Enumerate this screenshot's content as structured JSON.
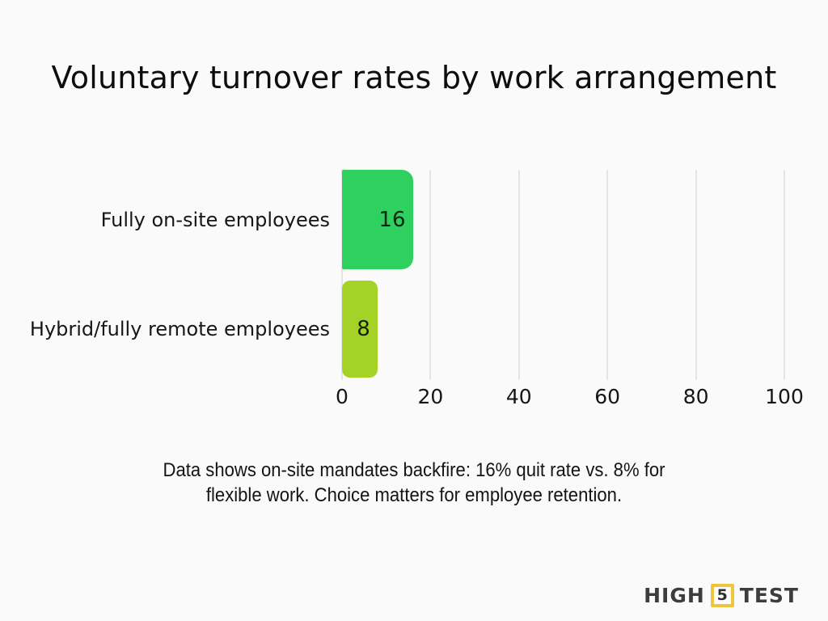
{
  "background_color": "#fafafa",
  "title": "Voluntary turnover rates by work arrangement",
  "chart_data": {
    "type": "bar",
    "orientation": "horizontal",
    "title": "Voluntary turnover rates by work arrangement",
    "categories": [
      "Fully on-site employees",
      "Hybrid/fully remote employees"
    ],
    "values": [
      16,
      8
    ],
    "value_labels": [
      "16",
      "8"
    ],
    "bar_colors": [
      "#2ed05f",
      "#a4d226"
    ],
    "x_ticks": [
      "0",
      "20",
      "40",
      "60",
      "80",
      "100"
    ],
    "xlim": [
      0,
      100
    ],
    "grid": true,
    "gridline_color": "#e4e4e4",
    "legend_position": "none"
  },
  "caption": {
    "line1": "Data shows on-site mandates backfire: 16% quit rate vs. 8% for",
    "line2": "flexible work. Choice matters for employee retention."
  },
  "logo": {
    "word1": "HIGH",
    "digit": "5",
    "word2": "TEST",
    "accent_color": "#efc53b"
  }
}
